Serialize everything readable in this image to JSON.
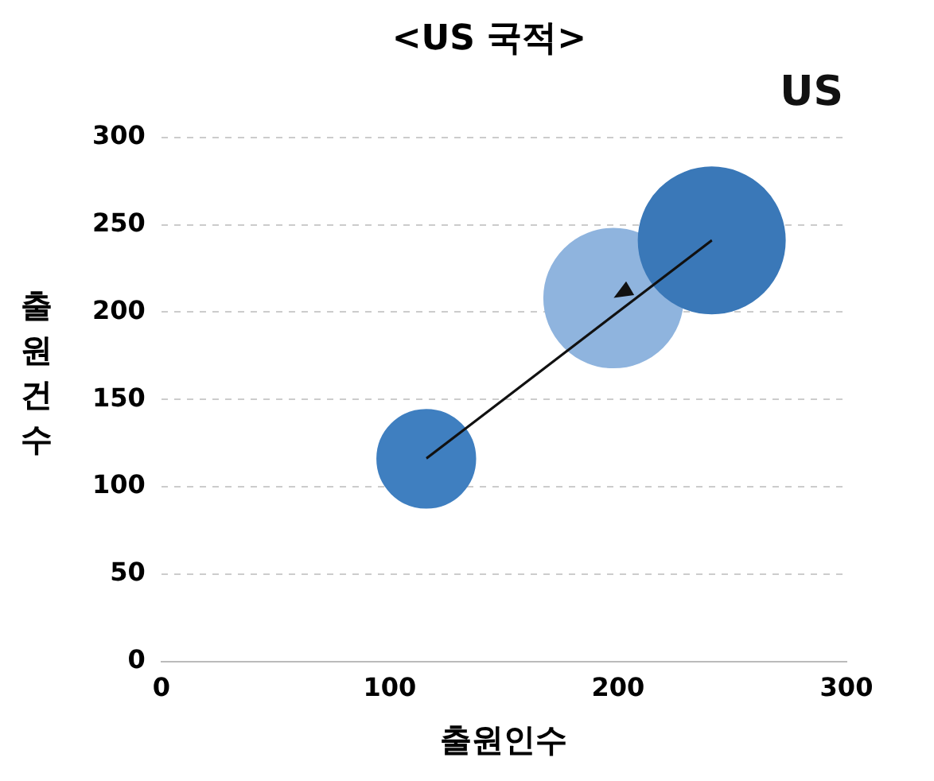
{
  "chart_data": {
    "type": "bubble",
    "title": "<US 국적>",
    "xlabel": "출원인수",
    "ylabel": "출원건수",
    "annotations": [
      "US"
    ],
    "x": [
      116,
      198,
      241
    ],
    "values": [
      116,
      208,
      241
    ],
    "sizes": [
      0.45,
      0.9,
      1
    ],
    "colors": [
      "#3f7fc0",
      "#8fb4de",
      "#3a78b8"
    ],
    "xlim": [
      0,
      300
    ],
    "xticks": [
      0,
      100,
      200,
      300
    ],
    "ylim": [
      0,
      300
    ],
    "yticks": [
      0,
      50,
      100,
      150,
      200,
      250,
      300
    ],
    "grid": "y",
    "legend": false
  }
}
